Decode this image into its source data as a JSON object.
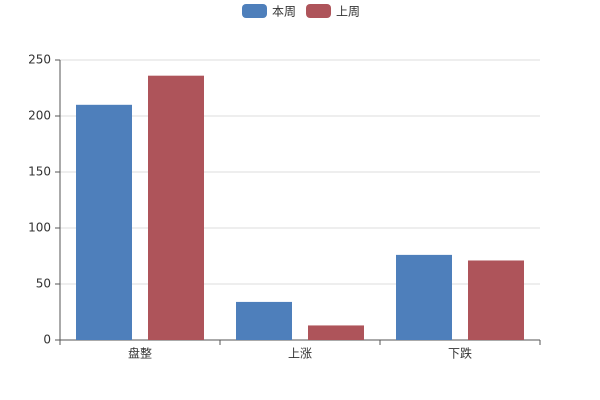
{
  "chart_data": {
    "type": "bar",
    "categories": [
      "盘整",
      "上涨",
      "下跌"
    ],
    "series": [
      {
        "name": "本周",
        "color": "#4e7fbb",
        "values": [
          210,
          34,
          76
        ]
      },
      {
        "name": "上周",
        "color": "#ae545a",
        "values": [
          236,
          13,
          71
        ]
      }
    ],
    "ylim": [
      0,
      250
    ],
    "yticks": [
      0,
      50,
      100,
      150,
      200,
      250
    ],
    "grid": true,
    "legend": "top"
  }
}
